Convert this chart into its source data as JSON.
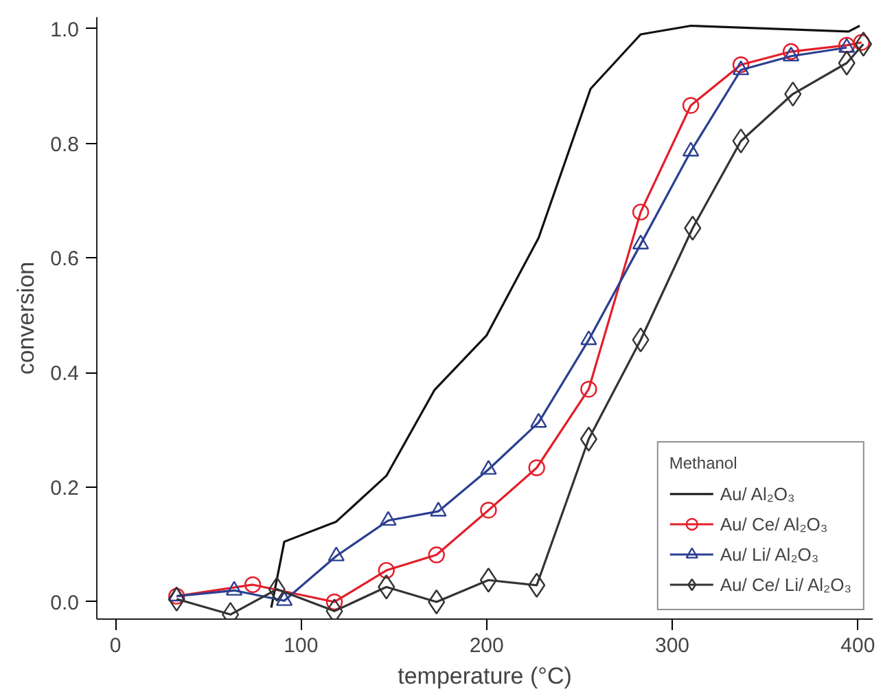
{
  "chart_data": {
    "type": "line",
    "xlabel": "temperature (°C)",
    "ylabel": "conversion",
    "legend_title": "Methanol",
    "legend": "bottom right",
    "grid": false,
    "xlim": [
      -10,
      408
    ],
    "ylim": [
      -0.03,
      1.02
    ],
    "xticks": [
      0,
      100,
      200,
      300,
      400
    ],
    "yticks": [
      {
        "value": 0,
        "label": "0.0"
      },
      {
        "value": 0.2,
        "label": "0.2"
      },
      {
        "value": 0.4,
        "label": "0.4"
      },
      {
        "value": 0.6,
        "label": "0.6"
      },
      {
        "value": 0.8,
        "label": "0.8"
      },
      {
        "value": 1,
        "label": "1.0"
      }
    ],
    "series": [
      {
        "name": "Au/ Al₂O₃",
        "color": "#111111",
        "marker": "none",
        "x": [
          84,
          91,
          119,
          146,
          172,
          200,
          228,
          256,
          283,
          310,
          395,
          401
        ],
        "values": [
          -0.01,
          0.105,
          0.14,
          0.22,
          0.37,
          0.465,
          0.635,
          0.895,
          0.99,
          1.005,
          0.995,
          1.005
        ]
      },
      {
        "name": "Au/ Ce/ Al₂O₃",
        "color": "#e41e2a",
        "marker": "circle",
        "x": [
          33,
          74,
          118,
          146,
          173,
          201,
          227,
          255,
          283,
          310,
          337,
          364,
          394,
          402
        ],
        "values": [
          0.01,
          0.03,
          0.0,
          0.055,
          0.082,
          0.16,
          0.234,
          0.371,
          0.68,
          0.866,
          0.937,
          0.96,
          0.971,
          0.976
        ]
      },
      {
        "name": "Au/ Li/ Al₂O₃",
        "color": "#2b3f91",
        "marker": "triangle",
        "x": [
          33,
          64,
          91,
          119,
          147,
          174,
          201,
          228,
          255,
          283,
          310,
          337,
          364,
          394
        ],
        "values": [
          0.01,
          0.02,
          0.002,
          0.08,
          0.142,
          0.158,
          0.231,
          0.313,
          0.457,
          0.624,
          0.786,
          0.928,
          0.952,
          0.967
        ]
      },
      {
        "name": "Au/ Ce/ Li/ Al₂O₃",
        "color": "#333333",
        "marker": "diamond",
        "x": [
          33,
          62,
          87,
          118,
          146,
          173,
          201,
          227,
          255,
          283,
          311,
          337,
          365,
          394,
          403
        ],
        "values": [
          0.005,
          -0.022,
          0.022,
          -0.016,
          0.026,
          0.0,
          0.038,
          0.029,
          0.284,
          0.457,
          0.652,
          0.804,
          0.886,
          0.94,
          0.973
        ]
      }
    ]
  }
}
